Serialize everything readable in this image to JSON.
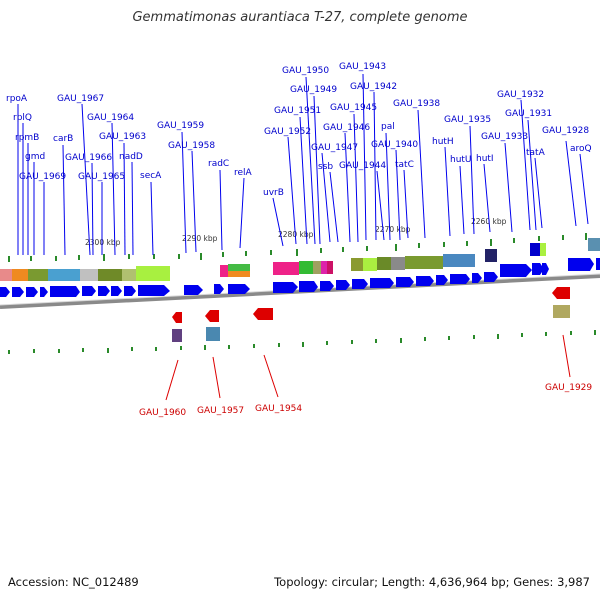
{
  "title": "Gemmatimonas aurantiaca T-27, complete genome",
  "footer": {
    "accession": "Accession: NC_012489",
    "summary": "Topology: circular; Length: 4,636,964 bp; Genes: 3,987"
  },
  "colors": {
    "forward": "#0000ee",
    "reverse": "#dd0000",
    "backbone": "#888888",
    "tick": "#2a8a2a"
  },
  "scale_labels": [
    "2300 kbp",
    "2290 kbp",
    "2280 kbp",
    "2270 kbp",
    "2260 kbp"
  ],
  "forward_labels": [
    "rpoA",
    "rplQ",
    "rpmB",
    "gmd",
    "GAU_1969",
    "carB",
    "GAU_1967",
    "GAU_1966",
    "GAU_1965",
    "GAU_1964",
    "GAU_1963",
    "nadD",
    "secA",
    "GAU_1959",
    "GAU_1958",
    "radC",
    "relA",
    "uvrB",
    "GAU_1952",
    "GAU_1951",
    "GAU_1950",
    "GAU_1949",
    "GAU_1947",
    "ssb",
    "GAU_1946",
    "GAU_1945",
    "GAU_1943",
    "GAU_1942",
    "GAU_1944",
    "pal",
    "GAU_1940",
    "tatC",
    "GAU_1938",
    "hutH",
    "hutU",
    "GAU_1935",
    "hutI",
    "GAU_1933",
    "GAU_1932",
    "GAU_1931",
    "tatA",
    "GAU_1928",
    "aroQ"
  ],
  "reverse_labels": [
    "GAU_1960",
    "GAU_1957",
    "GAU_1954",
    "GAU_1929"
  ]
}
